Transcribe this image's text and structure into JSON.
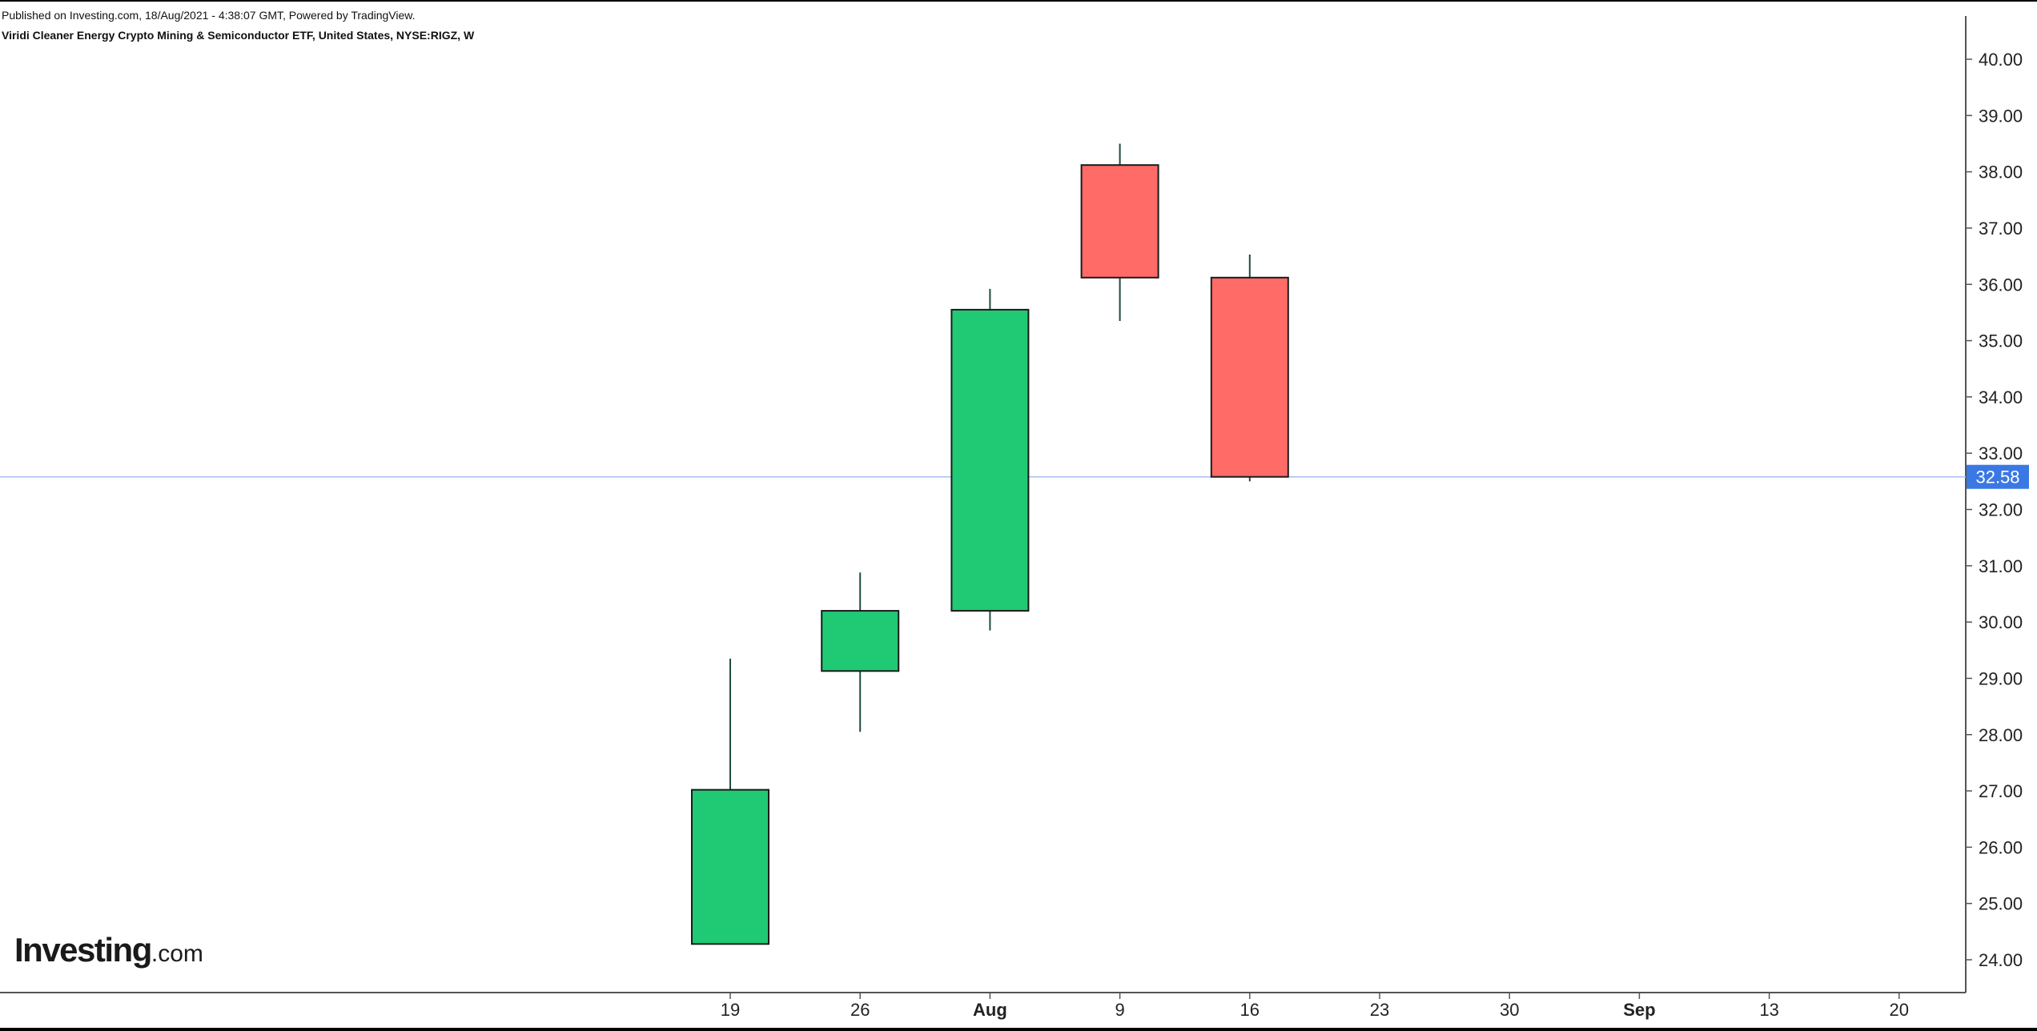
{
  "header": {
    "published_text": "Published on Investing.com, 18/Aug/2021 - 4:38:07 GMT, Powered by TradingView.",
    "title": "Viridi Cleaner Energy Crypto Mining & Semiconductor ETF, United States, NYSE:RIGZ, W"
  },
  "logo": {
    "brand": "Investing",
    "suffix": ".com"
  },
  "colors": {
    "up": "#20c974",
    "down": "#ff6b66",
    "wick": "#1f4d3a",
    "price_line": "#a9bdf2",
    "price_label_bg": "#3a78e4",
    "axis": "#555555"
  },
  "chart_data": {
    "type": "candlestick",
    "interval": "W",
    "ylim": [
      23.7,
      40.3
    ],
    "y_ticks": [
      "40.00",
      "39.00",
      "38.00",
      "37.00",
      "36.00",
      "35.00",
      "34.00",
      "33.00",
      "32.00",
      "31.00",
      "30.00",
      "29.00",
      "28.00",
      "27.00",
      "26.00",
      "25.00",
      "24.00"
    ],
    "x_ticks": [
      {
        "label": "19",
        "bold": false
      },
      {
        "label": "26",
        "bold": false
      },
      {
        "label": "Aug",
        "bold": true
      },
      {
        "label": "9",
        "bold": false
      },
      {
        "label": "16",
        "bold": false
      },
      {
        "label": "23",
        "bold": false
      },
      {
        "label": "30",
        "bold": false
      },
      {
        "label": "Sep",
        "bold": true
      },
      {
        "label": "13",
        "bold": false
      },
      {
        "label": "20",
        "bold": false
      }
    ],
    "candles": [
      {
        "week": "19",
        "open": 24.28,
        "high": 29.35,
        "low": 24.28,
        "close": 27.02
      },
      {
        "week": "26",
        "open": 29.13,
        "high": 30.88,
        "low": 28.05,
        "close": 30.2
      },
      {
        "week": "Aug",
        "open": 30.2,
        "high": 35.92,
        "low": 29.85,
        "close": 35.55
      },
      {
        "week": "9",
        "open": 38.12,
        "high": 38.5,
        "low": 35.35,
        "close": 36.12
      },
      {
        "week": "16",
        "open": 36.12,
        "high": 36.53,
        "low": 32.5,
        "close": 32.58
      }
    ],
    "last_price": 32.58,
    "last_price_label": "32.58"
  }
}
